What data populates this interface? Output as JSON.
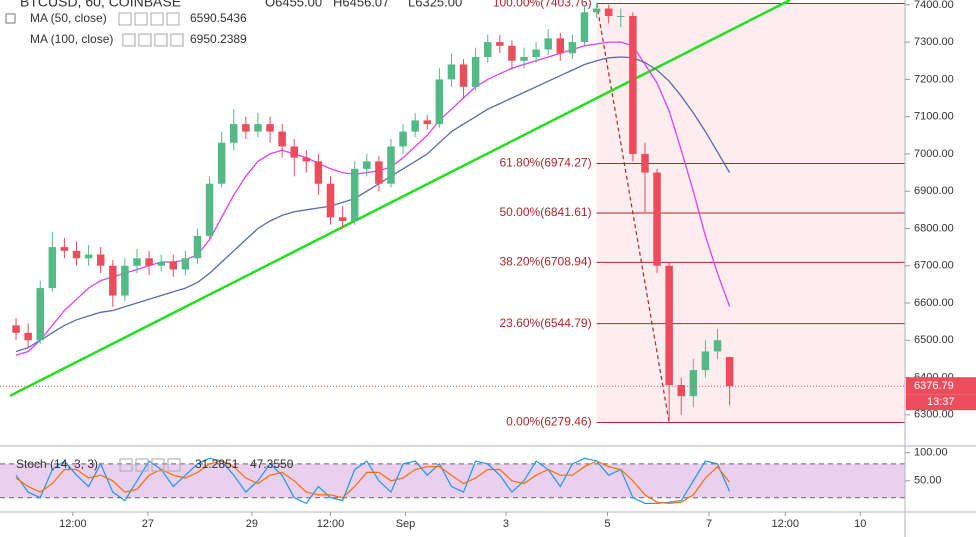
{
  "chart_data": {
    "type": "candlestick",
    "title": "BTCUSD, 60, COINBASE",
    "ohlc_labels": [
      "O6455.00",
      "H6456.07",
      "L6325.00"
    ],
    "xlim": [
      -0.5,
      73.5
    ],
    "xticks": [
      {
        "value": 4.7,
        "label": "12:00"
      },
      {
        "value": 10.9,
        "label": "27"
      },
      {
        "value": 19.5,
        "label": "29"
      },
      {
        "value": 26,
        "label": "12:00"
      },
      {
        "value": 32.2,
        "label": "Sep"
      },
      {
        "value": 40.5,
        "label": "3"
      },
      {
        "value": 48.9,
        "label": "5"
      },
      {
        "value": 57.3,
        "label": "7"
      },
      {
        "value": 63.6,
        "label": "12:00"
      },
      {
        "value": 69.8,
        "label": "10"
      }
    ],
    "ylim": [
      6219,
      7413
    ],
    "yticks": [
      {
        "value": 6300,
        "label": "6300.00"
      },
      {
        "value": 6400,
        "label": "6400.00"
      },
      {
        "value": 6500,
        "label": "6500.00"
      },
      {
        "value": 6600,
        "label": "6600.00"
      },
      {
        "value": 6700,
        "label": "6700.00"
      },
      {
        "value": 6800,
        "label": "6800.00"
      },
      {
        "value": 6900,
        "label": "6900.00"
      },
      {
        "value": 7000,
        "label": "7000.00"
      },
      {
        "value": 7100,
        "label": "7100.00"
      },
      {
        "value": 7200,
        "label": "7200.00"
      },
      {
        "value": 7300,
        "label": "7300.00"
      },
      {
        "value": 7400,
        "label": "7400.00"
      }
    ],
    "candles": {
      "up_color": "#53b987",
      "down_color": "#eb4d5c",
      "open": [
        6540,
        6520,
        6500,
        6640,
        6750,
        6740,
        6720,
        6730,
        6700,
        6620,
        6700,
        6720,
        6700,
        6710,
        6690,
        6720,
        6780,
        6920,
        7030,
        7080,
        7060,
        7080,
        7060,
        7020,
        6990,
        6980,
        6920,
        6830,
        6820,
        6960,
        6980,
        6920,
        7020,
        7060,
        7090,
        7080,
        7200,
        7240,
        7180,
        7260,
        7300,
        7290,
        7250,
        7260,
        7280,
        7310,
        7270,
        7300,
        7380,
        7390,
        7370,
        7370,
        7000,
        6950,
        6700,
        6380,
        6350,
        6420,
        6470,
        6455
      ],
      "high": [
        6560,
        6545,
        6660,
        6790,
        6775,
        6765,
        6755,
        6750,
        6715,
        6720,
        6745,
        6740,
        6730,
        6730,
        6740,
        6800,
        6940,
        7060,
        7120,
        7100,
        7110,
        7100,
        7080,
        7040,
        7010,
        7000,
        6940,
        6860,
        6980,
        7000,
        6995,
        7040,
        7080,
        7110,
        7105,
        7230,
        7270,
        7255,
        7285,
        7320,
        7320,
        7305,
        7285,
        7300,
        7335,
        7325,
        7320,
        7395,
        7403.76,
        7400,
        7390,
        7380,
        7030,
        6960,
        6710,
        6400,
        6450,
        6500,
        6530,
        6456.07
      ],
      "low": [
        6500,
        6480,
        6490,
        6630,
        6720,
        6700,
        6700,
        6680,
        6590,
        6605,
        6680,
        6675,
        6685,
        6670,
        6675,
        6705,
        6770,
        6910,
        7010,
        7040,
        7045,
        7030,
        6990,
        6940,
        6950,
        6890,
        6810,
        6800,
        6810,
        6940,
        6900,
        6910,
        7000,
        7045,
        7065,
        7070,
        7180,
        7150,
        7170,
        7245,
        7270,
        7225,
        7230,
        7245,
        7265,
        7250,
        7255,
        7290,
        7365,
        7350,
        7340,
        6980,
        6840,
        6680,
        6279.46,
        6300,
        6320,
        6400,
        6450,
        6325
      ],
      "close": [
        6520,
        6500,
        6640,
        6750,
        6740,
        6720,
        6730,
        6700,
        6620,
        6700,
        6720,
        6700,
        6710,
        6690,
        6720,
        6780,
        6920,
        7030,
        7080,
        7060,
        7080,
        7060,
        7020,
        6990,
        6980,
        6920,
        6830,
        6820,
        6960,
        6980,
        6920,
        7020,
        7060,
        7090,
        7080,
        7200,
        7240,
        7180,
        7260,
        7300,
        7290,
        7250,
        7260,
        7280,
        7310,
        7270,
        7300,
        7380,
        7390,
        7370,
        7370,
        7000,
        6950,
        6700,
        6380,
        6350,
        6420,
        6470,
        6500,
        6376.79
      ]
    },
    "series": [
      {
        "name": "MA (50, close)",
        "color": "#e040fb",
        "values": [
          6460,
          6470,
          6500,
          6540,
          6580,
          6610,
          6640,
          6660,
          6670,
          6680,
          6690,
          6700,
          6710,
          6710,
          6715,
          6730,
          6770,
          6830,
          6890,
          6940,
          6980,
          7000,
          7010,
          7000,
          6990,
          6975,
          6960,
          6950,
          6945,
          6950,
          6955,
          6965,
          6990,
          7020,
          7050,
          7090,
          7120,
          7150,
          7180,
          7200,
          7215,
          7230,
          7240,
          7250,
          7260,
          7270,
          7280,
          7290,
          7295,
          7300,
          7300,
          7290,
          7240,
          7190,
          7115,
          7010,
          6900,
          6780,
          6680,
          6590.5436
        ]
      },
      {
        "name": "MA (100, close)",
        "color": "#5c6ba8",
        "values": [
          6470,
          6480,
          6500,
          6520,
          6540,
          6555,
          6565,
          6575,
          6580,
          6590,
          6600,
          6610,
          6620,
          6630,
          6640,
          6655,
          6680,
          6710,
          6740,
          6770,
          6800,
          6820,
          6835,
          6845,
          6850,
          6855,
          6860,
          6870,
          6880,
          6900,
          6920,
          6940,
          6960,
          6980,
          7000,
          7030,
          7060,
          7080,
          7100,
          7120,
          7135,
          7150,
          7165,
          7180,
          7195,
          7210,
          7225,
          7240,
          7250,
          7258,
          7260,
          7258,
          7245,
          7225,
          7195,
          7155,
          7110,
          7060,
          7005,
          6950.2389
        ]
      }
    ],
    "trendline": {
      "color": "#22e01e",
      "x": [
        -0.5,
        64
      ],
      "y": [
        6351,
        7413
      ]
    },
    "fibonacci": {
      "color": "#b0262f",
      "x": [
        48,
        54
      ],
      "levels": [
        {
          "value": 7403.76,
          "label": "100.00%(7403.76)"
        },
        {
          "value": 6974.27,
          "label": "61.80%(6974.27)"
        },
        {
          "value": 6841.61,
          "label": "50.00%(6841.61)"
        },
        {
          "value": 6708.94,
          "label": "38.20%(6708.94)"
        },
        {
          "value": 6544.79,
          "label": "23.60%(6544.79)"
        },
        {
          "value": 6279.46,
          "label": "0.00%(6279.46)"
        }
      ]
    },
    "countdown": "13:37",
    "stochastic": {
      "name": "Stoch (14, 3, 3)",
      "ylim": [
        0,
        110
      ],
      "yticks": [
        {
          "value": 100,
          "label": "100.00"
        },
        {
          "value": 50,
          "label": "50.00"
        }
      ],
      "bands": [
        20,
        80
      ],
      "series": [
        {
          "color": "#2196f3",
          "values": [
            60,
            30,
            20,
            70,
            85,
            60,
            40,
            80,
            30,
            15,
            50,
            85,
            70,
            40,
            60,
            80,
            90,
            85,
            60,
            30,
            50,
            80,
            60,
            20,
            10,
            40,
            20,
            15,
            70,
            85,
            50,
            30,
            80,
            85,
            60,
            80,
            40,
            30,
            85,
            80,
            60,
            30,
            50,
            85,
            70,
            40,
            80,
            90,
            85,
            60,
            70,
            20,
            10,
            10,
            12,
            15,
            50,
            85,
            80,
            31.2851
          ],
          "last_label": "31.2851"
        },
        {
          "color": "#ff6d00",
          "values": [
            55,
            40,
            30,
            45,
            70,
            70,
            55,
            60,
            50,
            30,
            35,
            60,
            70,
            60,
            55,
            65,
            80,
            85,
            75,
            55,
            45,
            60,
            65,
            50,
            30,
            25,
            25,
            20,
            40,
            65,
            65,
            50,
            55,
            70,
            75,
            75,
            60,
            45,
            55,
            70,
            70,
            50,
            45,
            60,
            70,
            60,
            60,
            75,
            85,
            75,
            70,
            50,
            25,
            12,
            10,
            12,
            25,
            55,
            75,
            47.355
          ],
          "last_label": "47.3550"
        }
      ]
    }
  }
}
